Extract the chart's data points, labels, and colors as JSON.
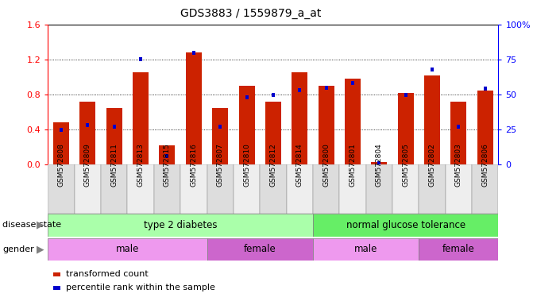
{
  "title": "GDS3883 / 1559879_a_at",
  "samples": [
    "GSM572808",
    "GSM572809",
    "GSM572811",
    "GSM572813",
    "GSM572815",
    "GSM572816",
    "GSM572807",
    "GSM572810",
    "GSM572812",
    "GSM572814",
    "GSM572800",
    "GSM572801",
    "GSM572804",
    "GSM572805",
    "GSM572802",
    "GSM572803",
    "GSM572806"
  ],
  "transformed_count": [
    0.48,
    0.72,
    0.65,
    1.05,
    0.22,
    1.28,
    0.65,
    0.9,
    0.72,
    1.05,
    0.9,
    0.98,
    0.03,
    0.82,
    1.02,
    0.72,
    0.85
  ],
  "percentile_rank": [
    25,
    28,
    27,
    75,
    6,
    80,
    27,
    48,
    50,
    53,
    55,
    58,
    1,
    50,
    68,
    27,
    54
  ],
  "bar_color": "#cc2200",
  "marker_color": "#0000cc",
  "ylim_left": [
    0,
    1.6
  ],
  "ylim_right": [
    0,
    100
  ],
  "yticks_left": [
    0,
    0.4,
    0.8,
    1.2,
    1.6
  ],
  "yticks_right": [
    0,
    25,
    50,
    75,
    100
  ],
  "disease_color_t2d": "#aaffaa",
  "disease_color_ngt": "#66ee66",
  "gender_color_light": "#ee99ee",
  "gender_color_dark": "#cc66cc",
  "legend_labels": [
    "transformed count",
    "percentile rank within the sample"
  ],
  "legend_colors": [
    "#cc2200",
    "#0000cc"
  ],
  "t2d_count": 10,
  "ngt_count": 7,
  "male_t2d_count": 6,
  "female_t2d_count": 4,
  "male_ngt_count": 4,
  "female_ngt_count": 3
}
